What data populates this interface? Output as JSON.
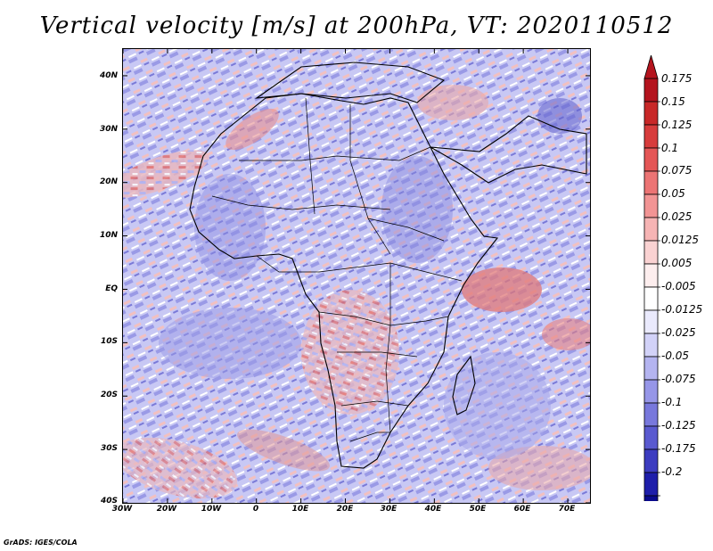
{
  "title": "Vertical velocity [m/s] at 200hPa, VT: 2020110512",
  "credit": "GrADS: IGES/COLA",
  "map": {
    "region": "Africa and surrounding oceans",
    "lat_range": [
      -40,
      45
    ],
    "lon_range": [
      -30,
      75
    ],
    "lat_ticks": [
      "40N",
      "30N",
      "20N",
      "10N",
      "EQ",
      "10S",
      "20S",
      "30S",
      "40S"
    ],
    "lat_values": [
      40,
      30,
      20,
      10,
      0,
      -10,
      -20,
      -30,
      -40
    ],
    "lon_ticks": [
      "30W",
      "20W",
      "10W",
      "0",
      "10E",
      "20E",
      "30E",
      "40E",
      "50E",
      "60E",
      "70E"
    ],
    "lon_values": [
      -30,
      -20,
      -10,
      0,
      10,
      20,
      30,
      40,
      50,
      60,
      70
    ]
  },
  "colorbar": {
    "labels": [
      "0.175",
      "0.15",
      "0.125",
      "0.1",
      "0.075",
      "0.05",
      "0.025",
      "0.0125",
      "0.005",
      "-0.005",
      "-0.0125",
      "-0.025",
      "-0.05",
      "-0.075",
      "-0.1",
      "-0.125",
      "-0.175",
      "-0.2"
    ],
    "colors": [
      "#b4141e",
      "#c82828",
      "#d73c3c",
      "#e45656",
      "#ec7474",
      "#f29494",
      "#f6b4b4",
      "#fad2d2",
      "#fdeeee",
      "#ffffff",
      "#eaeafd",
      "#d2d2f8",
      "#b4b4f0",
      "#9696e8",
      "#7878dc",
      "#5a5ad0",
      "#3c3cc0",
      "#1e1eaa",
      "#0a0a8c"
    ]
  }
}
